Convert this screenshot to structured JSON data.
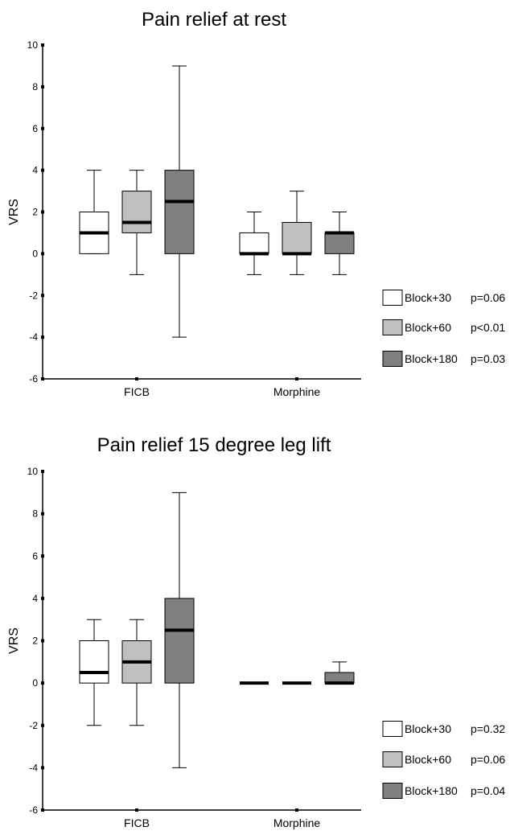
{
  "chart_data": [
    {
      "type": "box",
      "title": "Pain relief at rest",
      "ylabel": "VRS",
      "ylim": [
        -6,
        10
      ],
      "yticks": [
        10,
        8,
        6,
        4,
        2,
        0,
        -2,
        -4,
        -6
      ],
      "categories": [
        "FICB",
        "Morphine"
      ],
      "series": [
        {
          "name": "Block+30",
          "p": "p=0.06",
          "color": "#ffffff",
          "boxes": [
            {
              "category": "FICB",
              "min": 0,
              "q1": 0,
              "median": 1,
              "q3": 2,
              "max": 4
            },
            {
              "category": "Morphine",
              "min": -1,
              "q1": 0,
              "median": 0,
              "q3": 1,
              "max": 2
            }
          ]
        },
        {
          "name": "Block+60",
          "p": "p<0.01",
          "color": "#c0c0c0",
          "boxes": [
            {
              "category": "FICB",
              "min": -1,
              "q1": 1,
              "median": 1.5,
              "q3": 3,
              "max": 4
            },
            {
              "category": "Morphine",
              "min": -1,
              "q1": 0,
              "median": 0,
              "q3": 1.5,
              "max": 3
            }
          ]
        },
        {
          "name": "Block+180",
          "p": "p=0.03",
          "color": "#808080",
          "boxes": [
            {
              "category": "FICB",
              "min": -4,
              "q1": 0,
              "median": 2.5,
              "q3": 4,
              "max": 9
            },
            {
              "category": "Morphine",
              "min": -1,
              "q1": 0,
              "median": 1,
              "q3": 1,
              "max": 2
            }
          ]
        }
      ]
    },
    {
      "type": "box",
      "title": "Pain relief 15 degree leg lift",
      "ylabel": "VRS",
      "ylim": [
        -6,
        10
      ],
      "yticks": [
        10,
        8,
        6,
        4,
        2,
        0,
        -2,
        -4,
        -6
      ],
      "categories": [
        "FICB",
        "Morphine"
      ],
      "series": [
        {
          "name": "Block+30",
          "p": "p=0.32",
          "color": "#ffffff",
          "boxes": [
            {
              "category": "FICB",
              "min": -2,
              "q1": 0,
              "median": 0.5,
              "q3": 2,
              "max": 3
            },
            {
              "category": "Morphine",
              "min": 0,
              "q1": 0,
              "median": 0,
              "q3": 0,
              "max": 0
            }
          ]
        },
        {
          "name": "Block+60",
          "p": "p=0.06",
          "color": "#c0c0c0",
          "boxes": [
            {
              "category": "FICB",
              "min": -2,
              "q1": 0,
              "median": 1,
              "q3": 2,
              "max": 3
            },
            {
              "category": "Morphine",
              "min": 0,
              "q1": 0,
              "median": 0,
              "q3": 0,
              "max": 0
            }
          ]
        },
        {
          "name": "Block+180",
          "p": "p=0.04",
          "color": "#808080",
          "boxes": [
            {
              "category": "FICB",
              "min": -4,
              "q1": 0,
              "median": 2.5,
              "q3": 4,
              "max": 9
            },
            {
              "category": "Morphine",
              "min": 0,
              "q1": 0,
              "median": 0,
              "q3": 0.5,
              "max": 1
            }
          ]
        }
      ]
    }
  ]
}
